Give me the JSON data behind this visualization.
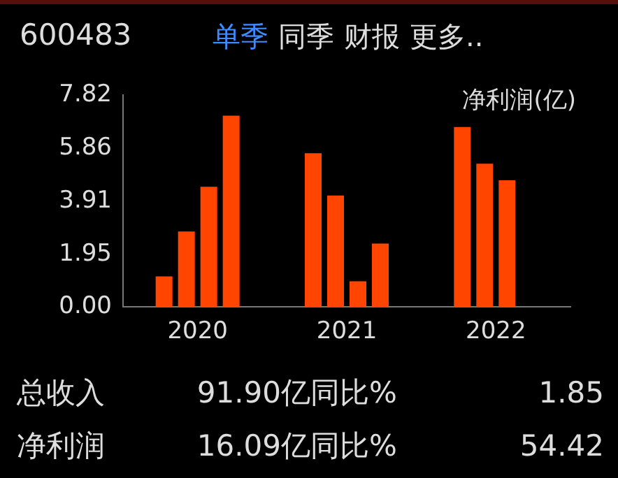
{
  "chart_data": {
    "type": "bar",
    "title": "600483",
    "ylabel": "净利润(亿)",
    "categories": [
      "2020",
      "2021",
      "2022"
    ],
    "series": [
      {
        "color": "#ff4500",
        "values": [
          1.13,
          5.68,
          6.65
        ]
      },
      {
        "color": "#ff4500",
        "values": [
          2.79,
          4.12,
          5.29
        ]
      },
      {
        "color": "#ff4500",
        "values": [
          4.44,
          0.95,
          4.68
        ]
      },
      {
        "color": "#ff4500",
        "values": [
          7.07,
          2.34,
          null
        ]
      }
    ],
    "ylim": [
      0,
      7.82
    ],
    "yticks": [
      {
        "value": 0,
        "label": "0.00"
      },
      1.95,
      3.91,
      5.86,
      7.82
    ],
    "grid": false,
    "legend": false,
    "annotations": [
      "单季",
      "同季",
      "财报",
      "更多..",
      "总收入",
      "91.90亿",
      "同比%",
      "1.85",
      "净利润",
      "16.09亿",
      "同比%",
      "54.42"
    ]
  }
}
